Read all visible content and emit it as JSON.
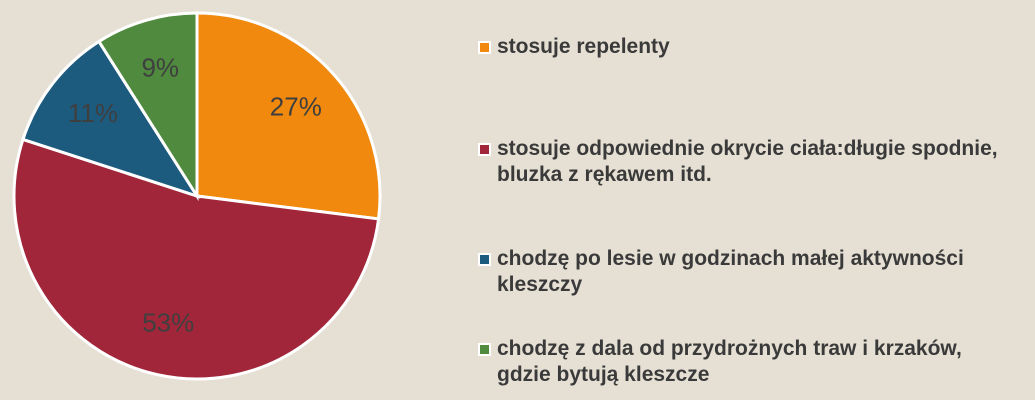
{
  "chart_data": {
    "type": "pie",
    "categories": [
      "stosuje repelenty",
      "stosuje odpowiednie okrycie ciała:długie spodnie, bluzka z rękawem itd.",
      "chodzę po lesie w godzinach małej aktywności kleszczy",
      "chodzę z dala od przydrożnych traw i krzaków, gdzie bytują kleszcze"
    ],
    "values": [
      27,
      53,
      11,
      9
    ],
    "value_labels": [
      "27%",
      "53%",
      "11%",
      "9%"
    ],
    "colors": [
      "#f0890d",
      "#a2263a",
      "#1c5a7e",
      "#4f8a3e"
    ],
    "legend": "right"
  }
}
